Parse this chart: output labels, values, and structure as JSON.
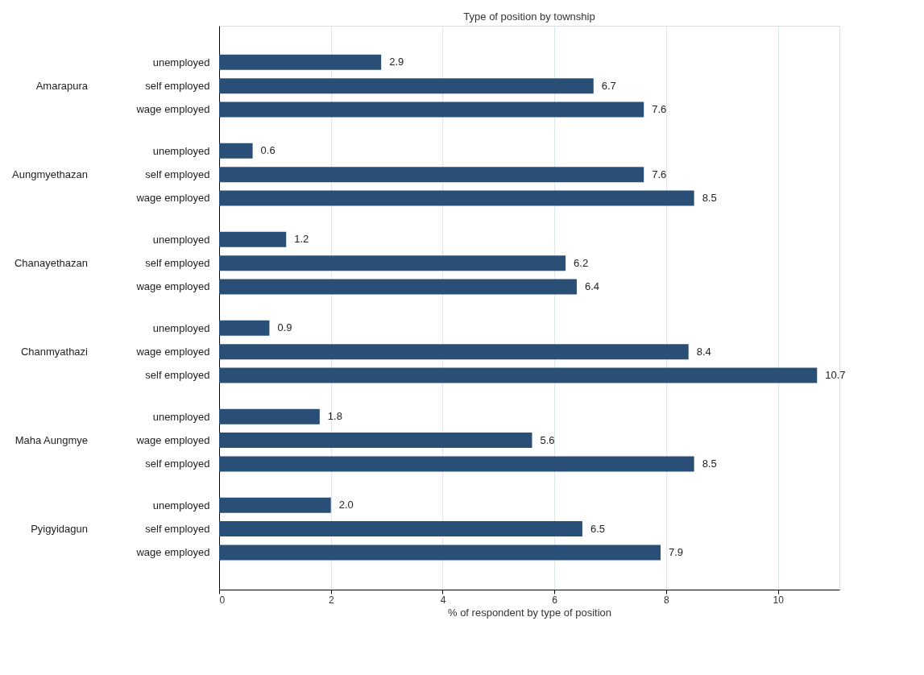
{
  "chart_data": {
    "type": "bar",
    "orientation": "horizontal",
    "title": "Type of position by township",
    "xlabel": "% of respondent by type of position",
    "categories": [
      "unemployed",
      "self employed",
      "wage employed",
      "unemployed",
      "self employed",
      "wage employed",
      "unemployed",
      "self employed",
      "wage employed",
      "unemployed",
      "wage employed",
      "self employed",
      "unemployed",
      "wage employed",
      "self employed",
      "unemployed",
      "self employed",
      "wage employed"
    ],
    "annotations": [
      "Amarapura",
      "Aungmyethazan",
      "Chanayethazan",
      "Chanmyathazi",
      "Maha Aungmye",
      "Pyigyidagun"
    ],
    "values": [
      2.9,
      6.7,
      7.6,
      0.6,
      7.6,
      8.5,
      1.2,
      6.2,
      6.4,
      0.9,
      8.4,
      10.7,
      1.8,
      5.6,
      8.5,
      2.0,
      6.5,
      7.9
    ],
    "value_labels": [
      "2.9",
      "6.7",
      "7.6",
      "0.6",
      "7.6",
      "8.5",
      "1.2",
      "6.2",
      "6.4",
      "0.9",
      "8.4",
      "10.7",
      "1.8",
      "5.6",
      "8.5",
      "2.0",
      "6.5",
      "7.9"
    ],
    "color": "#2a4f77",
    "xlim": [
      0,
      11.1
    ],
    "xticks": [
      0,
      2,
      4,
      6,
      8,
      10
    ],
    "grid": "x"
  }
}
